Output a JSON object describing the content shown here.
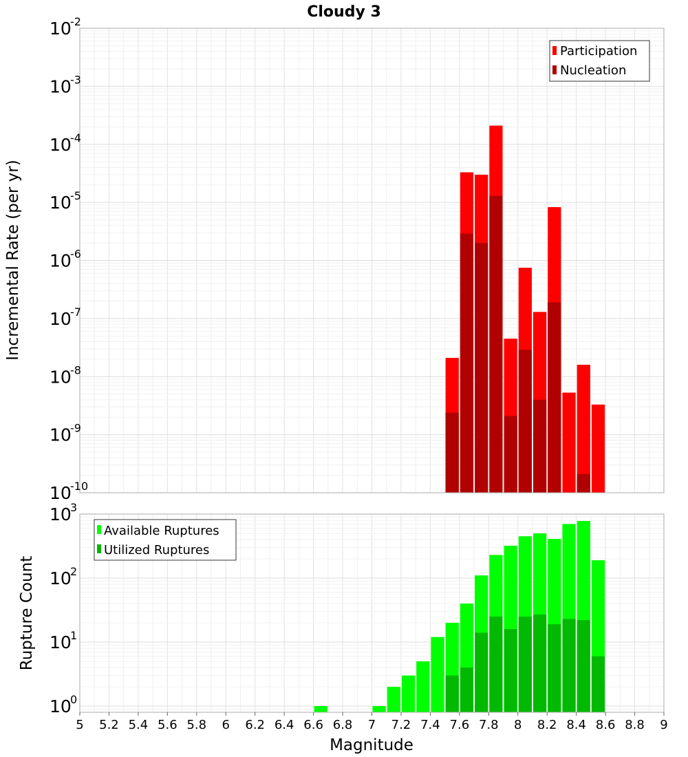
{
  "chart_data": [
    {
      "type": "bar",
      "title": "Cloudy 3",
      "xlabel": "",
      "ylabel": "Incremental Rate (per yr)",
      "yscale": "log",
      "xlim": [
        5,
        9
      ],
      "ylim": [
        1e-10,
        0.01
      ],
      "ytick_labels": [
        {
          "base": "10",
          "exp": "-10"
        },
        {
          "base": "10",
          "exp": "-9"
        },
        {
          "base": "10",
          "exp": "-8"
        },
        {
          "base": "10",
          "exp": "-7"
        },
        {
          "base": "10",
          "exp": "-6"
        },
        {
          "base": "10",
          "exp": "-5"
        },
        {
          "base": "10",
          "exp": "-4"
        },
        {
          "base": "10",
          "exp": "-3"
        },
        {
          "base": "10",
          "exp": "-2"
        }
      ],
      "legend_position": "top-right",
      "grid": true,
      "x": [
        7.55,
        7.65,
        7.75,
        7.85,
        7.95,
        8.05,
        8.15,
        8.25,
        8.35,
        8.45,
        8.55
      ],
      "series": [
        {
          "name": "Participation",
          "color": "#ff0000",
          "values": [
            2.1e-08,
            3.3e-05,
            3e-05,
            0.00021,
            4.5e-08,
            7.5e-07,
            1.3e-07,
            8.3e-06,
            5.3e-09,
            1.6e-08,
            3.3e-09
          ]
        },
        {
          "name": "Nucleation",
          "color": "#b00000",
          "values": [
            2.4e-09,
            2.9e-06,
            2e-06,
            1.3e-05,
            2.1e-09,
            2.9e-08,
            4e-09,
            1.9e-07,
            null,
            2.1e-10,
            null
          ]
        }
      ]
    },
    {
      "type": "bar",
      "title": "",
      "xlabel": "Magnitude",
      "ylabel": "Rupture Count",
      "yscale": "log",
      "xlim": [
        5,
        9
      ],
      "ylim": [
        0.8,
        1000
      ],
      "ytick_labels": [
        {
          "base": "10",
          "exp": "0"
        },
        {
          "base": "10",
          "exp": "1"
        },
        {
          "base": "10",
          "exp": "2"
        },
        {
          "base": "10",
          "exp": "3"
        }
      ],
      "x_tick_labels": [
        "5",
        "5.2",
        "5.4",
        "5.6",
        "5.8",
        "6",
        "6.2",
        "6.4",
        "6.6",
        "6.8",
        "7",
        "7.2",
        "7.4",
        "7.6",
        "7.8",
        "8",
        "8.2",
        "8.4",
        "8.6",
        "8.8",
        "9"
      ],
      "legend_position": "top-left",
      "grid": true,
      "x": [
        6.65,
        7.05,
        7.15,
        7.25,
        7.35,
        7.45,
        7.55,
        7.65,
        7.75,
        7.85,
        7.95,
        8.05,
        8.15,
        8.25,
        8.35,
        8.45,
        8.55
      ],
      "series": [
        {
          "name": "Available Ruptures",
          "color": "#00ff00",
          "values": [
            1,
            1,
            2,
            3,
            5,
            12,
            20,
            40,
            110,
            230,
            320,
            450,
            500,
            410,
            700,
            780,
            190
          ]
        },
        {
          "name": "Utilized Ruptures",
          "color": "#00b900",
          "values": [
            null,
            null,
            null,
            null,
            null,
            null,
            3,
            4,
            14,
            25,
            16,
            25,
            27,
            19,
            23,
            22,
            6
          ]
        }
      ]
    }
  ]
}
